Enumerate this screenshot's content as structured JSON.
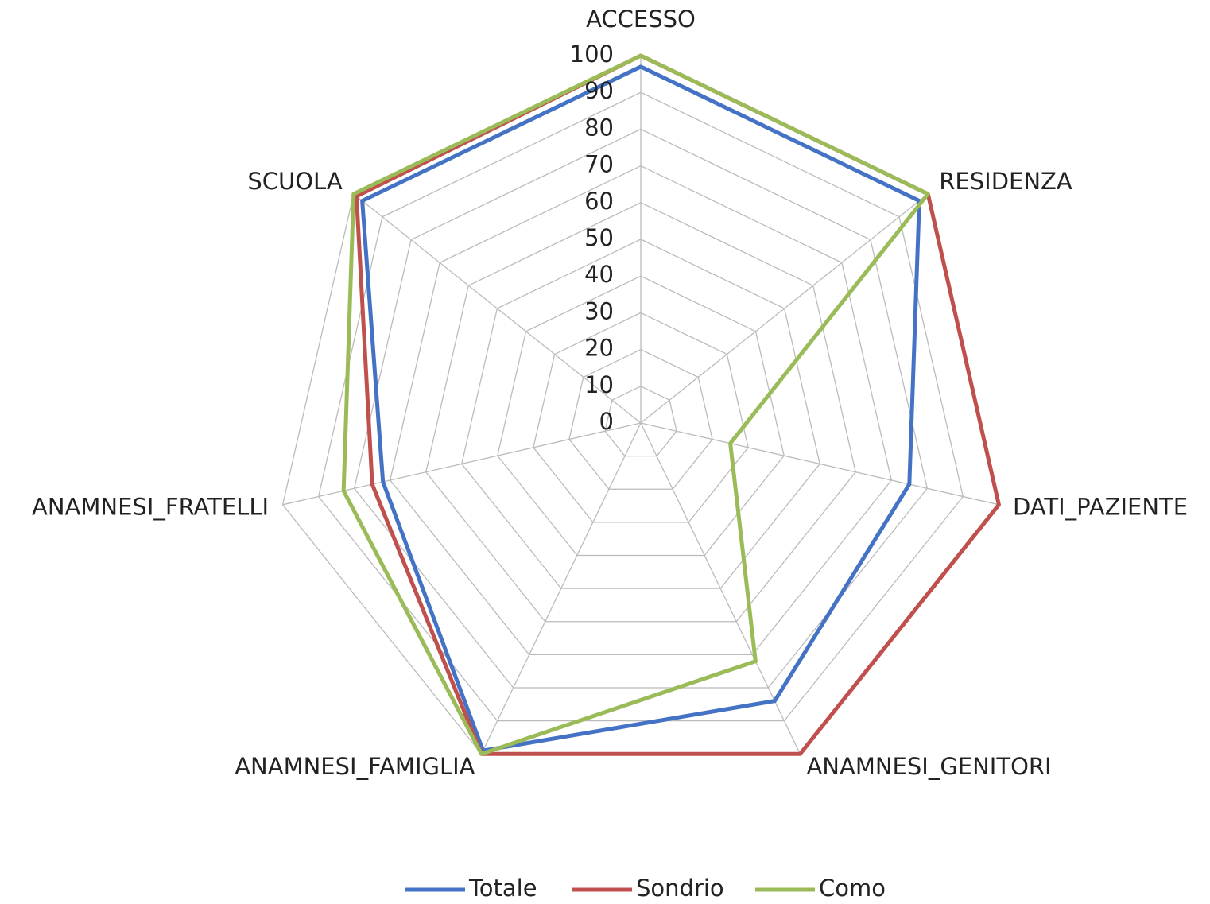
{
  "chart_data": {
    "type": "radar",
    "categories": [
      "ACCESSO",
      "RESIDENZA",
      "DATI_PAZIENTE",
      "ANAMNESI_GENITORI",
      "ANAMNESI_FAMIGLIA",
      "ANAMNESI_FRATELLI",
      "SCUOLA"
    ],
    "series": [
      {
        "name": "Totale",
        "color": "#4472c4",
        "values": [
          97,
          97,
          75,
          84,
          99,
          72,
          97
        ]
      },
      {
        "name": "Sondrio",
        "color": "#c0504d",
        "values": [
          100,
          100,
          100,
          100,
          100,
          75,
          99
        ]
      },
      {
        "name": "Como",
        "color": "#9bbb59",
        "values": [
          100,
          100,
          25,
          72,
          100,
          83,
          100
        ]
      }
    ],
    "ylim": [
      0,
      100
    ],
    "yticks": [
      0,
      10,
      20,
      30,
      40,
      50,
      60,
      70,
      80,
      90,
      100
    ],
    "grid": true,
    "legend": "bottom"
  }
}
